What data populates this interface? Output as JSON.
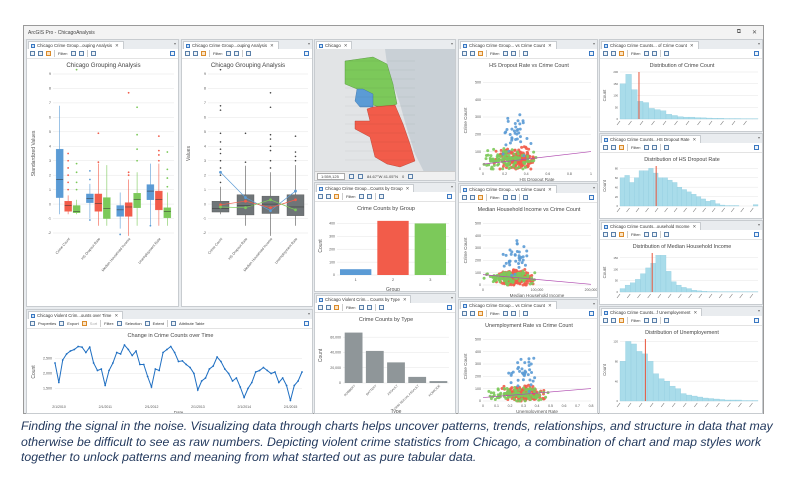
{
  "window": {
    "title": "ArcGIS Pro - ChicagoAnalysis",
    "restore_icon": "restore-icon",
    "close_icon": "close-icon"
  },
  "toolbar": {
    "filter_label": "Filter:",
    "properties_label": "Properties",
    "export_label": "Export",
    "sort_label": "Sort",
    "selection_label": "Selection",
    "extent_label": "Extent",
    "attribute_table_label": "Attribute Table"
  },
  "panels": {
    "box1": {
      "tab": "Chicago Crime Group...ouping Analysis",
      "title": "Chicago Grouping Analysis",
      "ylabel": "Standardized Values"
    },
    "box2": {
      "tab": "Chicago Crime Group...ouping Analysis",
      "title": "Chicago Grouping Analysis",
      "ylabel": "Values"
    },
    "map": {
      "tab": "Chicago",
      "scale": "1:559,125",
      "coords": "84.67°W 41.05°N",
      "selected": "0"
    },
    "group": {
      "tab": "Chicago Crime Group...Counts by Group",
      "title": "Crime Counts by Group",
      "xlabel": "Group",
      "ylabel": "Count"
    },
    "type": {
      "tab": "Chicago Violent Crim... Counts by Type",
      "title": "Crime Counts by Type",
      "xlabel": "Type",
      "ylabel": "Count"
    },
    "time": {
      "tab": "Chicago Violent Crim...ounts over Time",
      "title": "Change in Crime Counts over Time",
      "xlabel": "Date",
      "ylabel": "Count"
    },
    "sc1": {
      "tab": "Chicago Crime Group... vs Crime Count",
      "title": "HS Dropout Rate vs Crime Count",
      "xlabel": "HS Dropout Rate",
      "ylabel": "Crime Count"
    },
    "sc2": {
      "tab": "Chicago Crime Group... vs Crime Count",
      "title": "Median Household Income vs Crime Count",
      "xlabel": "Median Household Income",
      "ylabel": "Crime Count"
    },
    "sc3": {
      "tab": "Chicago Crime Group... vs Crime Count",
      "title": "Unemployment Rate vs Crime Count",
      "xlabel": "Unemployment Rate",
      "ylabel": "Crime Count"
    },
    "h1": {
      "tab": "Chicago Crime Counts... of Crime Count",
      "title": "Distribution of Crime Count",
      "ylabel": "Count"
    },
    "h2": {
      "tab": "Chicago Crime Counts...HS Dropout Rate",
      "title": "Distribution of HS Dropout Rate",
      "ylabel": "Count"
    },
    "h3": {
      "tab": "Chicago Crime Counts...ousehold Income",
      "title": "Distribution of Median Household Income",
      "ylabel": "Count"
    },
    "h4": {
      "tab": "Chicago Crime Counts...f Unemployement",
      "title": "Distribution of Unemployement",
      "ylabel": "Count"
    }
  },
  "colors": {
    "group1": "#5b9bd5",
    "group2": "#f25c4a",
    "group3": "#7cc95a",
    "hist": "#a9dcea",
    "mean_line": "#e8553c",
    "gray_bar": "#8f9699",
    "line": "#1f6fc2",
    "trend": "#b04bb0"
  },
  "chart_data": [
    {
      "id": "box1",
      "type": "box",
      "categories": [
        "Crime Count",
        "HS Dropout Rate",
        "Median Household Income",
        "Unemployment Rate"
      ],
      "ylim": [
        -2,
        9
      ],
      "yticks": [
        "-2",
        "-1",
        "0",
        "1",
        "2",
        "3",
        "4",
        "5",
        "6",
        "7",
        "8",
        "9"
      ],
      "series": [
        {
          "name": "1",
          "boxes": [
            [
              -0.7,
              0.45,
              1.7,
              3.8,
              6.8
            ],
            [
              -1.0,
              0.1,
              0.4,
              0.7,
              1.4
            ],
            [
              -1.7,
              -0.85,
              -0.4,
              -0.1,
              0.8
            ],
            [
              -1.5,
              0.3,
              0.9,
              1.35,
              2.8
            ]
          ],
          "outliers": [
            [],
            [
              1.7,
              2.3,
              -1.1
            ],
            [
              -2.1
            ],
            [
              -1.5
            ]
          ]
        },
        {
          "name": "2",
          "boxes": [
            [
              -0.7,
              -0.5,
              -0.1,
              0.2,
              0.6
            ],
            [
              -1.5,
              -0.5,
              0.05,
              0.7,
              2.8
            ],
            [
              -2.2,
              -0.85,
              -0.2,
              0.1,
              1.7
            ],
            [
              -1.5,
              -0.4,
              0.3,
              0.9,
              2.8
            ]
          ],
          "outliers": [
            [
              1.0,
              1.5,
              2.0,
              2.5,
              3.0,
              3.5
            ],
            [
              4.9,
              2.9
            ],
            [
              2.0,
              2.2,
              7.7
            ],
            [
              3.0,
              3.4,
              3.7,
              4.7
            ]
          ]
        },
        {
          "name": "3",
          "boxes": [
            [
              -0.7,
              -0.6,
              -0.5,
              -0.1,
              0.3
            ],
            [
              -1.5,
              -1.0,
              -0.3,
              0.45,
              2.7
            ],
            [
              -1.5,
              -0.25,
              0.3,
              0.75,
              2.2
            ],
            [
              -1.5,
              -0.95,
              -0.5,
              -0.25,
              0.8
            ]
          ],
          "outliers": [
            [
              1.0,
              1.5,
              2.2,
              2.8,
              9.3
            ],
            [],
            [
              3.0,
              3.8,
              4.8,
              6.7
            ],
            [
              1.2,
              1.8,
              2.4,
              3.6
            ]
          ]
        }
      ]
    },
    {
      "id": "box2",
      "type": "box",
      "categories": [
        "Crime Count",
        "HS Dropout Rate",
        "Median Household Income",
        "Unemployment Rate"
      ],
      "ylim": [
        -2,
        9
      ],
      "yticks": [
        "-2",
        "-1",
        "0",
        "1",
        "2",
        "3",
        "4",
        "5",
        "6",
        "7",
        "8",
        "9"
      ],
      "boxes": [
        [
          -0.7,
          -0.55,
          -0.3,
          0.2,
          1.2
        ],
        [
          -1.5,
          -0.75,
          -0.1,
          0.65,
          2.65
        ],
        [
          -2.2,
          -0.65,
          0.0,
          0.55,
          2.2
        ],
        [
          -1.5,
          -0.8,
          -0.2,
          0.65,
          2.7
        ]
      ],
      "outliers": [
        [
          1.5,
          2.0,
          2.5,
          3.0,
          3.5,
          3.8,
          4.3,
          4.9,
          6.5,
          6.8,
          9.3
        ],
        [
          2.9,
          4.9
        ],
        [
          2.5,
          3.0,
          3.7,
          4.0,
          4.5,
          4.8,
          6.7,
          7.7
        ],
        [
          3.0,
          3.3,
          3.6,
          4.7
        ]
      ],
      "means": [
        {
          "name": "1",
          "values": [
            2.2,
            0.45,
            -0.45,
            0.9
          ]
        },
        {
          "name": "2",
          "values": [
            -0.05,
            0.2,
            -0.25,
            0.3
          ]
        },
        {
          "name": "3",
          "values": [
            -0.2,
            -0.25,
            0.3,
            -0.4
          ]
        }
      ]
    },
    {
      "id": "group",
      "type": "bar",
      "categories": [
        "1",
        "2",
        "3"
      ],
      "values": [
        45,
        420,
        400
      ],
      "ylim": [
        0,
        450
      ],
      "yticks": [
        "0",
        "100",
        "200",
        "300",
        "400"
      ]
    },
    {
      "id": "type",
      "type": "bar",
      "categories": [
        "ROBBERY",
        "BATTERY",
        "ASSAULT",
        "CRIM SEXUAL ASSAULT",
        "HOMICIDE"
      ],
      "values": [
        66000,
        42000,
        27000,
        8000,
        2500
      ],
      "ylim": [
        0,
        72000
      ],
      "yticks": [
        "0",
        "20,000",
        "40,000",
        "60,000"
      ]
    },
    {
      "id": "time",
      "type": "line",
      "xticks": [
        "2/1/2010",
        "2/1/2011",
        "2/1/2012",
        "2/1/2013",
        "2/1/2014",
        "2/1/2015"
      ],
      "yticks": [
        "1,500",
        "2,000",
        "2,500"
      ],
      "ylim": [
        1050,
        3050
      ],
      "values": [
        2350,
        1700,
        2450,
        2650,
        2750,
        2800,
        2900,
        2880,
        2700,
        2880,
        2350,
        2100,
        2150,
        1600,
        2100,
        2350,
        2700,
        2650,
        2950,
        2800,
        2600,
        2750,
        2300,
        2300,
        1900,
        1550,
        2150,
        2100,
        2700,
        2800,
        2900,
        2700,
        2400,
        2420,
        2300,
        2200,
        2000,
        1450,
        1750,
        1850,
        2150,
        2250,
        2550,
        2400,
        2150,
        2000,
        1750,
        1850,
        1550,
        1200,
        1500,
        1700,
        2050,
        2100,
        2200,
        2100,
        2000,
        2050,
        1700,
        1850,
        1600,
        1100,
        1600,
        1750,
        2050
      ]
    },
    {
      "id": "sc1",
      "type": "scatter",
      "xlim": [
        0,
        1
      ],
      "ylim": [
        0,
        560
      ],
      "xticks": [
        "0",
        "0.2",
        "0.4",
        "0.6",
        "0.8",
        "1"
      ],
      "yticks": [
        "0",
        "100",
        "200",
        "300",
        "400",
        "500"
      ]
    },
    {
      "id": "sc2",
      "type": "scatter",
      "xlim": [
        0,
        250000
      ],
      "ylim": [
        0,
        560
      ],
      "xticks": [
        "0",
        "100,000",
        "200,000"
      ],
      "yticks": [
        "0",
        "100",
        "200",
        "300",
        "400",
        "500"
      ]
    },
    {
      "id": "sc3",
      "type": "scatter",
      "xlim": [
        0,
        0.8
      ],
      "ylim": [
        0,
        560
      ],
      "xticks": [
        "0",
        "0.1",
        "0.2",
        "0.3",
        "0.4",
        "0.5",
        "0.6",
        "0.7",
        "0.8"
      ],
      "yticks": [
        "0",
        "100",
        "200",
        "300",
        "400",
        "500"
      ]
    },
    {
      "id": "h1",
      "type": "histogram",
      "values": [
        150,
        190,
        125,
        75,
        70,
        45,
        40,
        35,
        20,
        15,
        10,
        8,
        8,
        6,
        5,
        4,
        3,
        3,
        2,
        2,
        2,
        1,
        1,
        1
      ],
      "mean_bin": 3.3,
      "yticks": [
        "0",
        "50",
        "100",
        "150",
        "200"
      ],
      "ylim": [
        0,
        200
      ]
    },
    {
      "id": "h2",
      "type": "histogram",
      "values": [
        60,
        65,
        50,
        60,
        75,
        75,
        80,
        70,
        60,
        60,
        55,
        50,
        40,
        35,
        30,
        25,
        20,
        15,
        10,
        12,
        5,
        2,
        1,
        1,
        1,
        0,
        0,
        0,
        3
      ],
      "mean_bin": 7.6,
      "yticks": [
        "0",
        "20",
        "40",
        "60",
        "80"
      ],
      "ylim": [
        0,
        85
      ]
    },
    {
      "id": "h3",
      "type": "histogram",
      "values": [
        15,
        30,
        40,
        55,
        80,
        105,
        125,
        160,
        160,
        90,
        45,
        30,
        20,
        15,
        8,
        5,
        3,
        2,
        2,
        1,
        1,
        1,
        1,
        1,
        1,
        1,
        1
      ],
      "mean_bin": 6.3,
      "yticks": [
        "0",
        "50",
        "100",
        "150"
      ],
      "ylim": [
        0,
        170
      ]
    },
    {
      "id": "h4",
      "type": "histogram",
      "values": [
        80,
        120,
        115,
        100,
        95,
        80,
        55,
        45,
        40,
        30,
        25,
        15,
        12,
        10,
        8,
        6,
        5,
        4,
        3,
        2,
        2,
        2,
        1,
        1,
        1
      ],
      "mean_bin": 4.6,
      "yticks": [
        "0",
        "40",
        "80",
        "120"
      ],
      "ylim": [
        0,
        125
      ]
    }
  ],
  "caption": "Finding the signal in the noise. Visualizing data through charts helps uncover patterns, trends, relationships, and structure in data that may otherwise be difficult to see as raw numbers. Depicting violent crime statistics from Chicago, a combination of chart and map styles work together to unlock patterns and meaning from what started out as pure tabular data."
}
